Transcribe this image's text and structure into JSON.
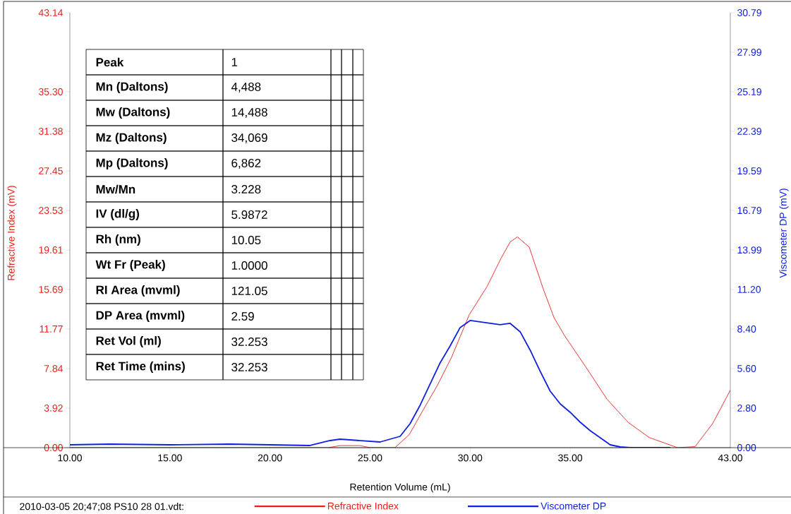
{
  "chart_data": {
    "type": "line",
    "xlabel": "Retention Volume (mL)",
    "ylabel": "Refractive Index (mV)",
    "y2label": "Viscometer DP (mV)",
    "xlim": [
      10,
      43
    ],
    "xticks": [
      {
        "value": 10,
        "label": "10.00"
      },
      {
        "value": 15,
        "label": "15.00"
      },
      {
        "value": 20,
        "label": "20.00"
      },
      {
        "value": 25,
        "label": "25.00"
      },
      {
        "value": 30,
        "label": "30.00"
      },
      {
        "value": 35,
        "label": "35.00"
      },
      {
        "value": 43,
        "label": "43.00"
      }
    ],
    "ylim": [
      0,
      43.14
    ],
    "yticks": [
      {
        "value": 0,
        "label": "0.00"
      },
      3.92,
      7.84,
      11.77,
      15.69,
      19.61,
      23.53,
      27.45,
      31.38,
      {
        "value": 35.3,
        "label": "35.30"
      },
      43.14
    ],
    "y2lim": [
      0,
      30.79
    ],
    "y2ticks": [
      {
        "value": 0,
        "label": "0.00"
      },
      {
        "value": 2.8,
        "label": "2.80"
      },
      {
        "value": 5.6,
        "label": "5.60"
      },
      {
        "value": 8.4,
        "label": "8.40"
      },
      {
        "value": 11.2,
        "label": "11.20"
      },
      13.99,
      16.79,
      19.59,
      22.39,
      25.19,
      27.99,
      30.79
    ],
    "legend": "bottom",
    "series": [
      {
        "name": "Refractive Index",
        "color": "#e8201c",
        "x": [
          10,
          22.9,
          23.5,
          24.5,
          25.0,
          26.25,
          26.96,
          27.67,
          28.37,
          29.08,
          29.96,
          30.85,
          31.55,
          32.0,
          32.36,
          32.95,
          33.66,
          34.19,
          34.72,
          35.78,
          36.84,
          37.9,
          38.95,
          40.36,
          41.24,
          42.12,
          43
        ],
        "values": [
          0,
          0,
          0.2,
          0.2,
          0,
          0,
          1.3,
          3.8,
          6.2,
          9.0,
          13.2,
          16.0,
          18.8,
          20.4,
          20.9,
          19.9,
          15.7,
          12.9,
          11.1,
          8.0,
          4.8,
          2.5,
          1.0,
          0,
          0.1,
          2.4,
          5.7
        ]
      },
      {
        "name": "Viscometer DP",
        "color": "#1020e0",
        "axis": "y2",
        "x": [
          10,
          12,
          15,
          18,
          20,
          22,
          23,
          23.5,
          24.5,
          25.5,
          26.5,
          27,
          27.5,
          28,
          28.5,
          29,
          29.5,
          30,
          31,
          31.5,
          32,
          32.5,
          33,
          33.5,
          34,
          34.5,
          35,
          35.5,
          36,
          36.5,
          37,
          37.5,
          38,
          40
        ],
        "values": [
          0.2,
          0.25,
          0.2,
          0.25,
          0.2,
          0.15,
          0.5,
          0.6,
          0.5,
          0.4,
          0.8,
          1.7,
          3.0,
          4.5,
          6.0,
          7.2,
          8.5,
          9.0,
          8.8,
          8.7,
          8.8,
          8.2,
          6.9,
          5.4,
          4.0,
          3.1,
          2.5,
          1.8,
          1.2,
          0.7,
          0.2,
          0.05,
          0,
          0
        ]
      }
    ],
    "annotations": [
      "Peak",
      "1",
      "Mn (Daltons)",
      "4,488",
      "Mw (Daltons)",
      "14,488",
      "Mz (Daltons)",
      "34,069",
      "Mp (Daltons)",
      "6,862",
      "Mw/Mn",
      "3.228",
      "IV (dl/g)",
      "5.9872",
      "Rh (nm)",
      "10.05",
      "Wt Fr (Peak)",
      "1.0000",
      "RI Area (mvml)",
      "121.05",
      "DP Area (mvml)",
      "2.59",
      "Ret Vol (ml)",
      "32.253",
      "Ret Time (mins)",
      "32.253",
      "2010-03-05  20;47;08  PS10  28  01.vdt:"
    ]
  }
}
